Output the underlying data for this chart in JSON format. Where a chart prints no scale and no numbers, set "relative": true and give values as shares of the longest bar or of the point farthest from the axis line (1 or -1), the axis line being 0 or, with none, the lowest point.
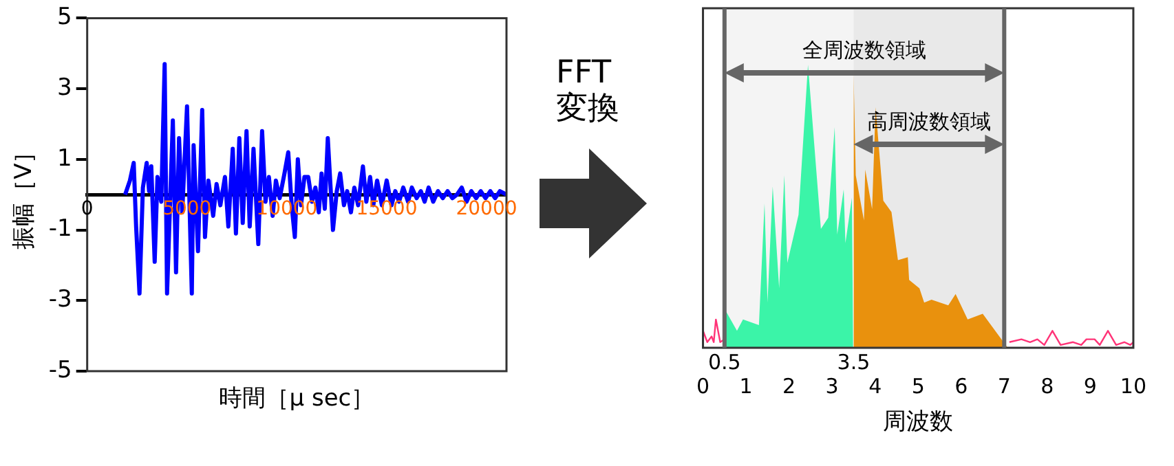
{
  "chart_data": [
    {
      "type": "line",
      "xlabel": "時間［μ sec］",
      "ylabel": "振幅［V］",
      "xlim": [
        0,
        21000
      ],
      "xticks": [
        0,
        5000,
        10000,
        15000,
        20000
      ],
      "ylim": [
        -5,
        5
      ],
      "yticks": [
        -5,
        -3,
        -1,
        1,
        3,
        5
      ],
      "marker": "none",
      "series": [
        {
          "color": "#0000ff",
          "x": [
            1900,
            2140,
            2330,
            2450,
            2620,
            2790,
            2980,
            3100,
            3210,
            3380,
            3520,
            3710,
            3880,
            4000,
            4290,
            4450,
            4600,
            4760,
            5000,
            5240,
            5330,
            5550,
            5760,
            5900,
            6070,
            6310,
            6480,
            6670,
            6900,
            7070,
            7290,
            7450,
            7620,
            7790,
            7980,
            8140,
            8330,
            8570,
            8760,
            8930,
            9100,
            9290,
            9450,
            9640,
            9880,
            10070,
            10240,
            10400,
            10550,
            10710,
            10880,
            11070,
            11260,
            11430,
            11600,
            11740,
            11900,
            12050,
            12310,
            12500,
            12670,
            12860,
            13020,
            13210,
            13380,
            13570,
            13810,
            13980,
            14170,
            14330,
            14520,
            14760,
            15000,
            15240,
            15430,
            15620,
            15830,
            16070,
            16260,
            16500,
            16710,
            16900,
            17100,
            17330,
            17570,
            17810,
            18050,
            18290,
            18520,
            18760,
            19000,
            19240,
            19480,
            19710,
            19950,
            20190,
            20430,
            20670,
            21000
          ],
          "values": [
            0,
            0.4,
            0.9,
            -0.9,
            -2.8,
            0.2,
            0.9,
            0.1,
            0.8,
            -1.9,
            0.5,
            -0.2,
            3.7,
            -2.8,
            2.1,
            -2.2,
            1.6,
            -0.5,
            2.5,
            -2.8,
            1.4,
            -1.6,
            2.4,
            -1.2,
            0.4,
            -0.6,
            0.3,
            -0.3,
            0.5,
            -0.9,
            1.3,
            -1.1,
            1.6,
            -0.8,
            1.8,
            -0.9,
            1.3,
            -1.4,
            1.8,
            -0.2,
            0.5,
            -0.6,
            0.4,
            -0.1,
            0.6,
            1.2,
            -0.3,
            -1.2,
            1,
            -0.3,
            0.5,
            0.5,
            -0.2,
            0.2,
            -0.5,
            0.6,
            -0.4,
            1.6,
            -1,
            0.1,
            0.6,
            -0.3,
            0.1,
            -0.5,
            0.2,
            -0.3,
            0.8,
            -0.2,
            0.5,
            -0.3,
            0.4,
            -0.3,
            0.4,
            -0.3,
            0.1,
            -0.2,
            0.2,
            -0.2,
            0.2,
            -0.1,
            0.1,
            -0.2,
            0.2,
            -0.2,
            0.1,
            -0.1,
            0.1,
            -0.1,
            0,
            0.2,
            -0.2,
            0.1,
            -0.1,
            0.1,
            -0.1,
            0.1,
            -0.1,
            0.1,
            0
          ]
        }
      ]
    },
    {
      "type": "other",
      "annotations": [
        "FFT",
        "変換"
      ]
    },
    {
      "type": "area",
      "relative": true,
      "marker": "none",
      "xlabel": "周波数",
      "xlim": [
        0,
        10
      ],
      "xticks": [
        0,
        1,
        2,
        3,
        4,
        5,
        6,
        7,
        8,
        9,
        10
      ],
      "annotations": [
        {
          "text": "3.5",
          "x": 3.5,
          "y": 0
        }
      ],
      "series": [
        {
          "type": "line",
          "color": "#ff3377",
          "x": [
            0,
            0.1,
            0.2,
            0.25,
            0.3,
            0.4,
            0.5
          ],
          "values": [
            0.06,
            0.02,
            0.04,
            0.02,
            0.1,
            0.02,
            0.03
          ]
        },
        {
          "color": "#38ffae",
          "x": [
            0.5,
            0.53,
            0.79,
            0.93,
            1.3,
            1.43,
            1.5,
            1.62,
            1.77,
            1.89,
            1.96,
            2.22,
            2.44,
            2.74,
            2.91,
            3.06,
            3.12,
            3.27,
            3.31,
            3.46,
            3.49
          ],
          "values": [
            0,
            0.13,
            0.06,
            0.1,
            0.08,
            0.51,
            0.16,
            0.57,
            0.21,
            0.61,
            0.3,
            0.47,
            1,
            0.42,
            0.46,
            0.78,
            0.4,
            0.56,
            0.37,
            0.53,
            0
          ]
        },
        {
          "color": "#ff9900",
          "x": [
            3.5,
            3.5,
            3.55,
            3.74,
            3.77,
            3.93,
            4.01,
            4.19,
            4.38,
            4.53,
            4.76,
            4.79,
            5.03,
            5.14,
            5.31,
            5.7,
            5.87,
            6.15,
            6.5,
            7.08
          ],
          "values": [
            0,
            0.97,
            0.61,
            0.45,
            0.63,
            0.49,
            0.85,
            0.52,
            0.48,
            0.31,
            0.32,
            0.24,
            0.21,
            0.16,
            0.17,
            0.15,
            0.19,
            0.1,
            0.12,
            0
          ]
        },
        {
          "type": "line",
          "color": "#ff3377",
          "x": [
            7.12,
            7.4,
            7.6,
            7.77,
            7.93,
            8.12,
            8.31,
            8.6,
            8.79,
            8.91,
            9.1,
            9.22,
            9.41,
            9.6,
            9.79,
            9.93,
            10
          ],
          "values": [
            0.02,
            0.03,
            0.02,
            0.03,
            0.01,
            0.06,
            0.01,
            0.02,
            0.01,
            0.03,
            0.03,
            0.01,
            0.06,
            0.01,
            0.02,
            0.01,
            0.02
          ]
        }
      ],
      "ref_lines": [
        {
          "axis": "x",
          "value": 0.5,
          "label": "0.5",
          "color": "#666666"
        },
        {
          "axis": "x",
          "value": 7,
          "color": "#666666"
        }
      ],
      "bands": [
        {
          "axis": "x",
          "from": 0.5,
          "to": 7,
          "label": "全周波数領域",
          "color": "#666666"
        },
        {
          "axis": "x",
          "from": 3.5,
          "to": 7,
          "label": "高周波数領域",
          "color": "#666666"
        }
      ]
    }
  ]
}
